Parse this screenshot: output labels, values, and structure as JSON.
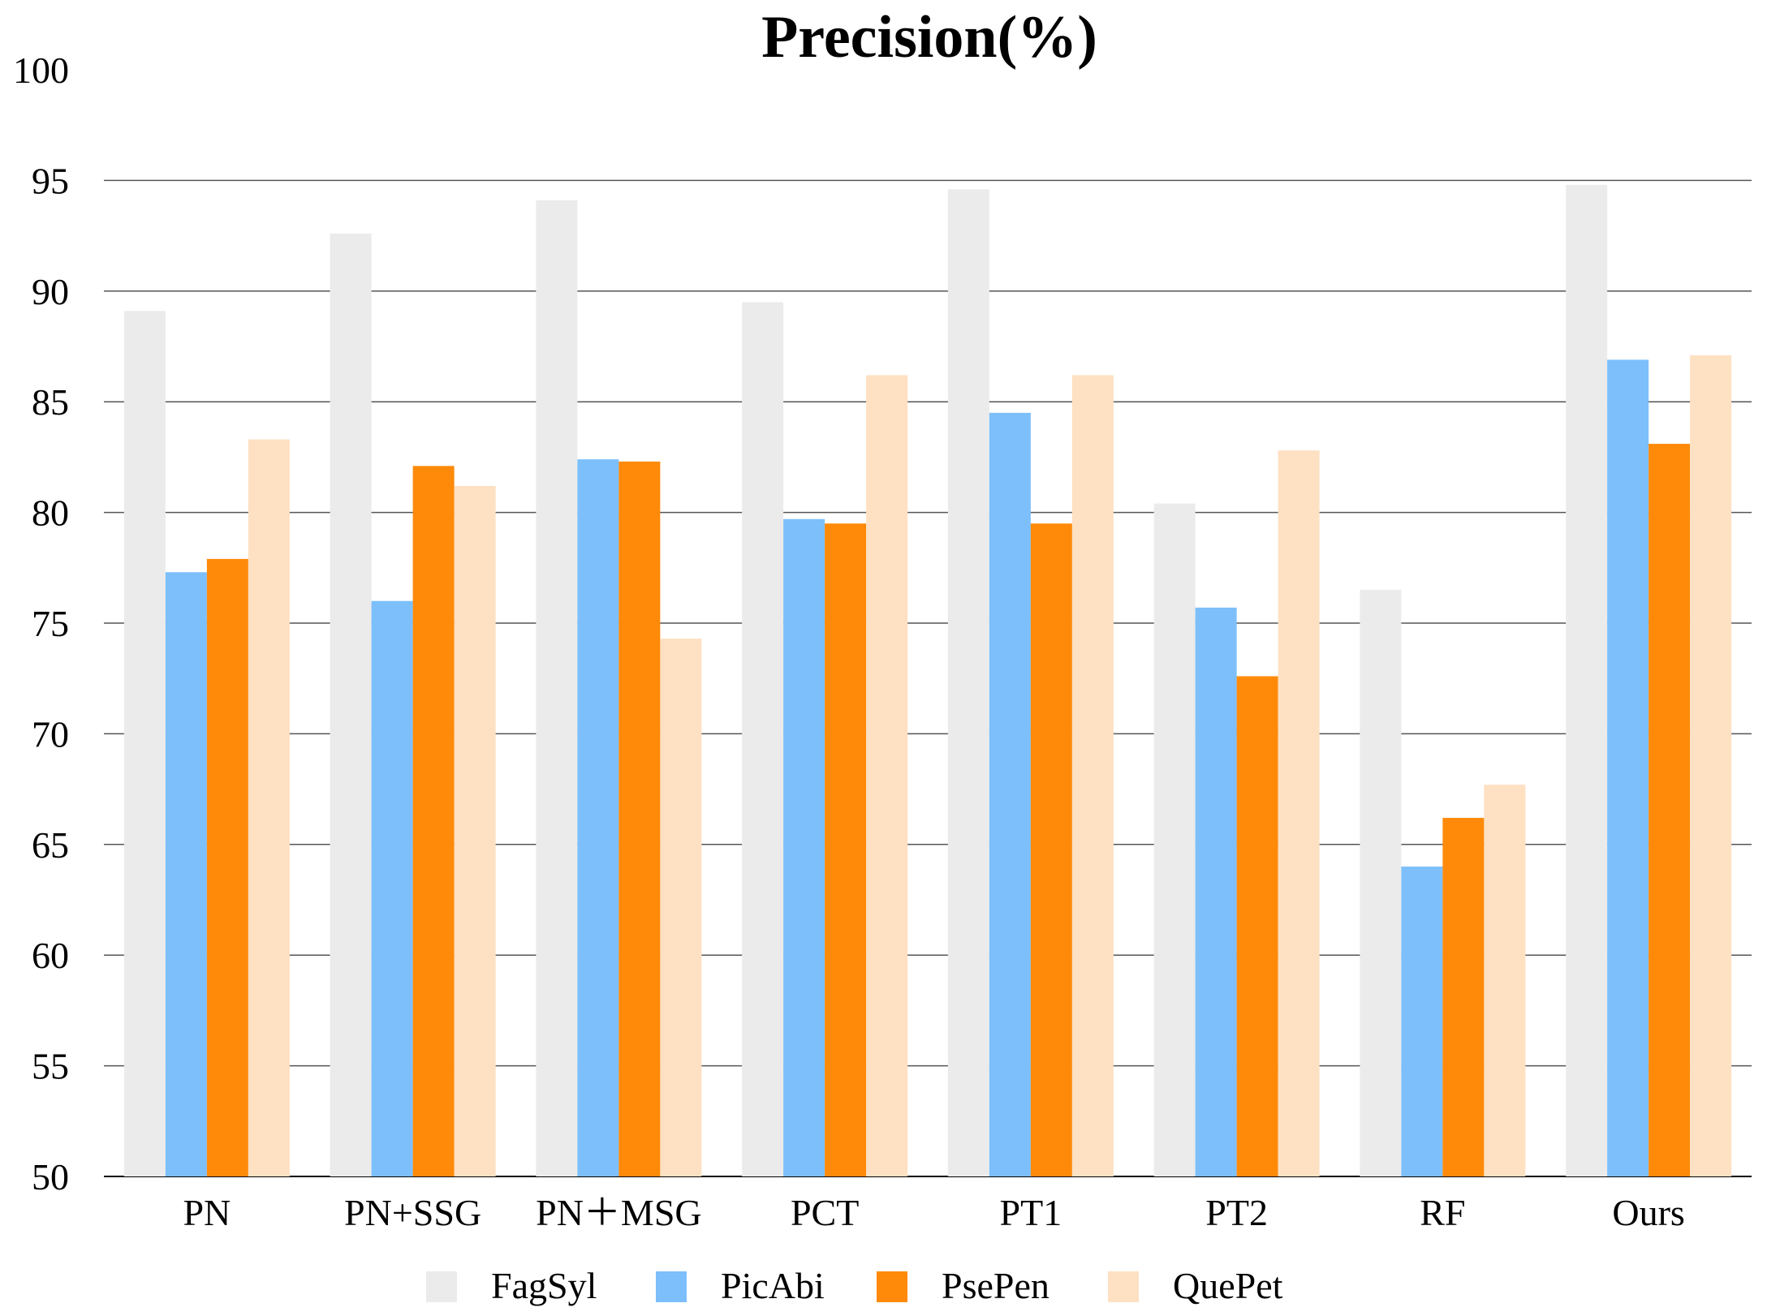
{
  "chart_data": {
    "type": "bar",
    "title": "Precision(%)",
    "xlabel": "",
    "ylabel": "",
    "ylim": [
      50,
      100
    ],
    "yticks": [
      50,
      55,
      60,
      65,
      70,
      75,
      80,
      85,
      90,
      95,
      100
    ],
    "categories": [
      "PN",
      "PN+SSG",
      "PN＋MSG",
      "PCT",
      "PT1",
      "PT2",
      "RF",
      "Ours"
    ],
    "series": [
      {
        "name": "FagSyl",
        "color": "#ebebeb",
        "values": [
          89.1,
          92.6,
          94.1,
          89.5,
          94.6,
          80.4,
          76.5,
          94.8
        ]
      },
      {
        "name": "PicAbi",
        "color": "#7cbffb",
        "values": [
          77.3,
          76.0,
          82.4,
          79.7,
          84.5,
          75.7,
          64.0,
          86.9
        ]
      },
      {
        "name": "PsePen",
        "color": "#ff8a0a",
        "values": [
          77.9,
          82.1,
          82.3,
          79.5,
          79.5,
          72.6,
          66.2,
          83.1
        ]
      },
      {
        "name": "QuePet",
        "color": "#fee0c2",
        "values": [
          83.3,
          81.2,
          74.3,
          86.2,
          86.2,
          82.8,
          67.7,
          87.1
        ]
      }
    ],
    "grid": true,
    "legend": "bottom"
  }
}
